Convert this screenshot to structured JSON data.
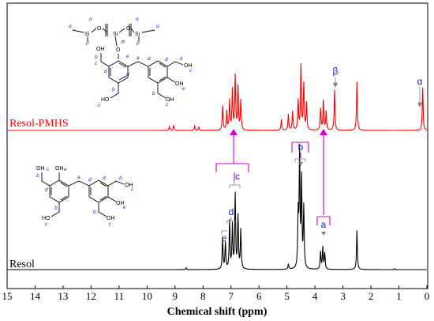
{
  "chart_data": {
    "type": "line",
    "title": "",
    "xlabel": "Chemical shift (ppm)",
    "ylabel": "",
    "xlim": [
      15,
      0
    ],
    "x_reversed": true,
    "x_ticks": [
      "15",
      "14",
      "13",
      "12",
      "11",
      "10",
      "9",
      "8",
      "7",
      "6",
      "5",
      "4",
      "3",
      "2",
      "1",
      "0"
    ],
    "grid": false,
    "series": [
      {
        "name": "Resol-PMHS",
        "color": "#ff0000",
        "peaks": [
          {
            "x": 9.2,
            "h": 0.07
          },
          {
            "x": 9.05,
            "h": 0.1
          },
          {
            "x": 8.3,
            "h": 0.08
          },
          {
            "x": 8.15,
            "h": 0.06
          },
          {
            "x": 7.3,
            "h": 0.45
          },
          {
            "x": 7.15,
            "h": 0.35
          },
          {
            "x": 7.05,
            "h": 0.55
          },
          {
            "x": 6.95,
            "h": 0.75
          },
          {
            "x": 6.85,
            "h": 1.0
          },
          {
            "x": 6.75,
            "h": 0.8
          },
          {
            "x": 6.65,
            "h": 0.55
          },
          {
            "x": 5.2,
            "h": 0.2
          },
          {
            "x": 4.95,
            "h": 0.3
          },
          {
            "x": 4.8,
            "h": 0.35
          },
          {
            "x": 4.6,
            "h": 0.55
          },
          {
            "x": 4.5,
            "h": 1.2
          },
          {
            "x": 4.4,
            "h": 0.85
          },
          {
            "x": 4.3,
            "h": 0.5
          },
          {
            "x": 3.8,
            "h": 0.4
          },
          {
            "x": 3.7,
            "h": 0.55
          },
          {
            "x": 3.6,
            "h": 0.35
          },
          {
            "x": 3.3,
            "h": 0.75
          },
          {
            "x": 2.5,
            "h": 0.9
          },
          {
            "x": 0.15,
            "h": 0.8
          }
        ]
      },
      {
        "name": "Resol",
        "color": "#000000",
        "peaks": [
          {
            "x": 8.6,
            "h": 0.02
          },
          {
            "x": 7.3,
            "h": 0.35
          },
          {
            "x": 7.2,
            "h": 0.3
          },
          {
            "x": 7.05,
            "h": 0.55
          },
          {
            "x": 6.95,
            "h": 0.5
          },
          {
            "x": 6.85,
            "h": 0.85
          },
          {
            "x": 6.75,
            "h": 0.6
          },
          {
            "x": 6.65,
            "h": 0.45
          },
          {
            "x": 4.95,
            "h": 0.06
          },
          {
            "x": 4.6,
            "h": 0.6
          },
          {
            "x": 4.55,
            "h": 1.3
          },
          {
            "x": 4.48,
            "h": 1.0
          },
          {
            "x": 4.4,
            "h": 0.7
          },
          {
            "x": 3.8,
            "h": 0.2
          },
          {
            "x": 3.72,
            "h": 0.25
          },
          {
            "x": 3.65,
            "h": 0.18
          },
          {
            "x": 2.5,
            "h": 0.45
          },
          {
            "x": 1.15,
            "h": 0.01
          }
        ]
      }
    ],
    "peak_labels": [
      {
        "text": "α",
        "x": 0.15,
        "series": "Resol-PMHS",
        "color": "#1a1ad6"
      },
      {
        "text": "β",
        "x": 3.3,
        "series": "Resol-PMHS",
        "color": "#1a1ad6"
      },
      {
        "text": "b",
        "x": 4.5,
        "series": "Resol-PMHS",
        "color": "#1a1ad6"
      },
      {
        "text": "c",
        "x": 6.8,
        "series": "Resol",
        "color": "#1a1ad6"
      },
      {
        "text": "d",
        "x": 7.0,
        "series": "Resol",
        "color": "#1a1ad6"
      },
      {
        "text": "e",
        "x": 7.25,
        "series": "Resol",
        "color": "#1a1ad6"
      },
      {
        "text": "a",
        "x": 3.72,
        "series": "Resol",
        "color": "#1a1ad6"
      }
    ],
    "annotations": [
      "a",
      "b",
      "c",
      "d",
      "e",
      "α",
      "β",
      "n"
    ]
  },
  "structures": {
    "resol_pmhs": {
      "si_labels": [
        "Si",
        "Si",
        "Si"
      ],
      "o_labels": [
        "O",
        "O",
        "O",
        "O"
      ],
      "repeat": "n",
      "alpha": "α",
      "beta": "β",
      "oh": "OH",
      "ho": "HO"
    },
    "resol": {
      "oh": "OH",
      "ho": "HO"
    }
  },
  "colors": {
    "resol_pmhs": "#ff0000",
    "resol": "#000000",
    "label_blue": "#1a1ad6",
    "connector_magenta": "#d400d4",
    "bracket_gray": "#808080"
  }
}
